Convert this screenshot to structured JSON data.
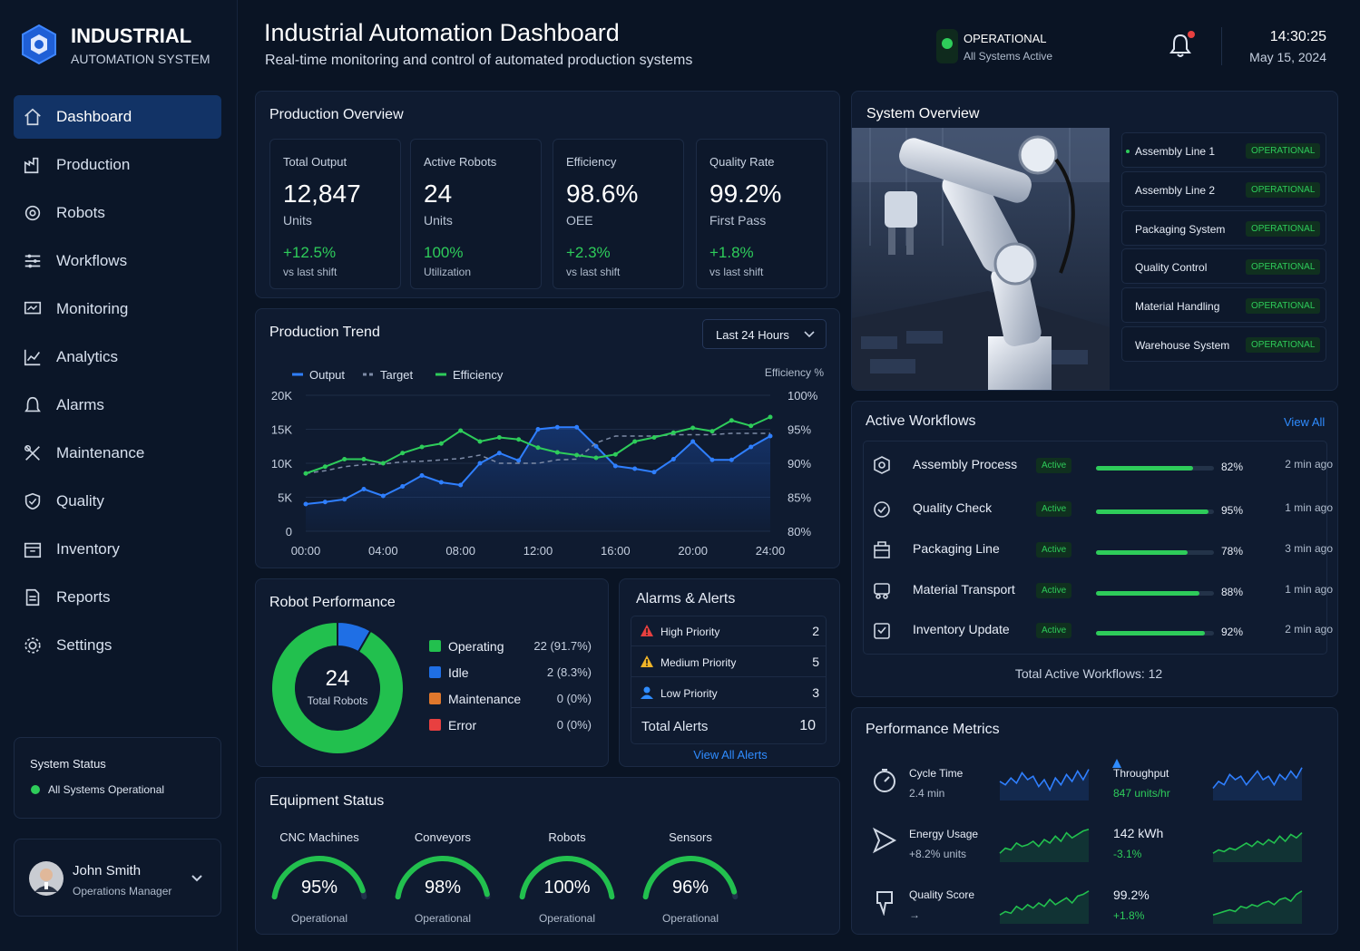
{
  "brand": {
    "title": "INDUSTRIAL",
    "subtitle": "AUTOMATION SYSTEM"
  },
  "nav": [
    {
      "label": "Dashboard",
      "icon": "home-icon",
      "active": true
    },
    {
      "label": "Production",
      "icon": "factory-icon"
    },
    {
      "label": "Robots",
      "icon": "robot-icon"
    },
    {
      "label": "Workflows",
      "icon": "workflow-icon"
    },
    {
      "label": "Monitoring",
      "icon": "monitor-icon"
    },
    {
      "label": "Analytics",
      "icon": "chart-icon"
    },
    {
      "label": "Alarms",
      "icon": "bell-icon"
    },
    {
      "label": "Maintenance",
      "icon": "wrench-icon"
    },
    {
      "label": "Quality",
      "icon": "shield-icon"
    },
    {
      "label": "Inventory",
      "icon": "box-icon"
    },
    {
      "label": "Reports",
      "icon": "document-icon"
    },
    {
      "label": "Settings",
      "icon": "gear-icon"
    }
  ],
  "system_status": {
    "title": "System Status",
    "text": "All Systems Operational"
  },
  "user": {
    "name": "John Smith",
    "role": "Operations Manager"
  },
  "header": {
    "title": "Industrial Automation Dashboard",
    "subtitle": "Real-time monitoring and control of automated production systems",
    "status": "OPERATIONAL",
    "status_sub": "All Systems Active",
    "time": "14:30:25",
    "date": "May 15, 2024"
  },
  "production_overview": {
    "title": "Production Overview",
    "kpis": [
      {
        "label": "Total Output",
        "value": "12,847",
        "unit": "Units",
        "change": "+12.5%",
        "sub": "vs last shift"
      },
      {
        "label": "Active Robots",
        "value": "24",
        "unit": "Units",
        "change": "100%",
        "sub": "Utilization"
      },
      {
        "label": "Efficiency",
        "value": "98.6%",
        "unit": "OEE",
        "change": "+2.3%",
        "sub": "vs last shift"
      },
      {
        "label": "Quality Rate",
        "value": "99.2%",
        "unit": "First Pass",
        "change": "+1.8%",
        "sub": "vs last shift"
      }
    ]
  },
  "trend": {
    "title": "Production Trend",
    "range": "Last 24 Hours"
  },
  "chart_data": {
    "type": "line",
    "title": "Production Trend",
    "x": [
      "00:00",
      "01:00",
      "02:00",
      "03:00",
      "04:00",
      "05:00",
      "06:00",
      "07:00",
      "08:00",
      "09:00",
      "10:00",
      "11:00",
      "12:00",
      "13:00",
      "14:00",
      "15:00",
      "16:00",
      "17:00",
      "18:00",
      "19:00",
      "20:00",
      "21:00",
      "22:00",
      "23:00",
      "24:00"
    ],
    "xticks": [
      "00:00",
      "04:00",
      "08:00",
      "12:00",
      "16:00",
      "20:00",
      "24:00"
    ],
    "yticks_left": [
      "0",
      "5K",
      "10K",
      "15K",
      "20K"
    ],
    "yticks_right": [
      "80%",
      "85%",
      "90%",
      "95%",
      "100%"
    ],
    "ylim": [
      0,
      20000
    ],
    "ylim_right": [
      80,
      100
    ],
    "ylabel_right": "Efficiency %",
    "legend": [
      "Output",
      "Target",
      "Efficiency"
    ],
    "series": [
      {
        "name": "Output",
        "color": "#2f7fff",
        "values": [
          4000,
          4300,
          4700,
          6200,
          5200,
          6600,
          8200,
          7200,
          6800,
          10000,
          11500,
          10400,
          15000,
          15300,
          15300,
          12500,
          9600,
          9200,
          8700,
          10600,
          13200,
          10500,
          10500,
          12400,
          14000
        ]
      },
      {
        "name": "Target",
        "color": "#7d8ba6",
        "dashed": true,
        "values": [
          8500,
          8900,
          9500,
          9800,
          9900,
          10200,
          10300,
          10500,
          10700,
          11200,
          10000,
          10000,
          10000,
          10500,
          10600,
          13000,
          14000,
          14000,
          14000,
          14200,
          14200,
          14200,
          14400,
          14400,
          14400
        ]
      },
      {
        "name": "Efficiency",
        "color": "#2ecc5a",
        "axis": "right",
        "values": [
          88.5,
          89.5,
          90.6,
          90.6,
          90,
          91.5,
          92.4,
          92.9,
          94.8,
          93.2,
          93.8,
          93.5,
          92.3,
          91.6,
          91.2,
          90.8,
          91.3,
          93.2,
          93.8,
          94.5,
          95.2,
          94.7,
          96.3,
          95.5,
          96.8
        ]
      }
    ]
  },
  "system_overview": {
    "title": "System Overview",
    "rows": [
      {
        "name": "Assembly Line 1",
        "status": "OPERATIONAL"
      },
      {
        "name": "Assembly Line 2",
        "status": "OPERATIONAL"
      },
      {
        "name": "Packaging System",
        "status": "OPERATIONAL"
      },
      {
        "name": "Quality Control",
        "status": "OPERATIONAL"
      },
      {
        "name": "Material Handling",
        "status": "OPERATIONAL"
      },
      {
        "name": "Warehouse System",
        "status": "OPERATIONAL"
      }
    ]
  },
  "workflows": {
    "title": "Active Workflows",
    "view_all": "View All",
    "total": "Total Active Workflows: 12",
    "rows": [
      {
        "name": "Assembly Process",
        "status": "Active",
        "pct": "82%",
        "progress": 0.82,
        "time": "2 min ago"
      },
      {
        "name": "Quality Check",
        "status": "Active",
        "pct": "95%",
        "progress": 0.95,
        "time": "1 min ago"
      },
      {
        "name": "Packaging Line",
        "status": "Active",
        "pct": "78%",
        "progress": 0.78,
        "time": "3 min ago"
      },
      {
        "name": "Material Transport",
        "status": "Active",
        "pct": "88%",
        "progress": 0.88,
        "time": "1 min ago"
      },
      {
        "name": "Inventory Update",
        "status": "Active",
        "pct": "92%",
        "progress": 0.92,
        "time": "2 min ago"
      }
    ]
  },
  "robot_performance": {
    "title": "Robot Performance",
    "center_value": "24",
    "center_label": "Total Robots",
    "items": [
      {
        "label": "Operating",
        "value": "22 (91.7%)",
        "count": 22,
        "color": "#22c04e"
      },
      {
        "label": "Idle",
        "value": "2 (8.3%)",
        "count": 2,
        "color": "#1f6fe5"
      },
      {
        "label": "Maintenance",
        "value": "0 (0%)",
        "count": 0,
        "color": "#e0782c"
      },
      {
        "label": "Error",
        "value": "0 (0%)",
        "count": 0,
        "color": "#e84040"
      }
    ]
  },
  "alarms": {
    "title": "Alarms & Alerts",
    "rows": [
      {
        "label": "High Priority",
        "count": "2",
        "color": "#e84040"
      },
      {
        "label": "Medium Priority",
        "count": "5",
        "color": "#f0b428"
      },
      {
        "label": "Low Priority",
        "count": "3",
        "color": "#2f8cff"
      }
    ],
    "total_label": "Total Alerts",
    "total": "10",
    "view_all": "View All Alerts"
  },
  "equipment": {
    "title": "Equipment Status",
    "gauges": [
      {
        "label": "CNC Machines",
        "value": "95%",
        "status": "Operational",
        "level": 0.95
      },
      {
        "label": "Conveyors",
        "value": "98%",
        "status": "Operational",
        "level": 0.98
      },
      {
        "label": "Robots",
        "value": "100%",
        "status": "Operational",
        "level": 1.0
      },
      {
        "label": "Sensors",
        "value": "96%",
        "status": "Operational",
        "level": 0.96
      }
    ]
  },
  "performance": {
    "title": "Performance Metrics",
    "metrics": [
      {
        "label": "Cycle Time",
        "value": "2.4 min",
        "icon": "stopwatch-icon"
      },
      {
        "label": "Throughput",
        "value": "847 units/hr",
        "icon": "arrow-up-icon"
      },
      {
        "label": "Energy Usage",
        "value": "+8.2% units",
        "icon": "send-icon"
      },
      {
        "label": "",
        "value": "142 kWh",
        "sub": "-3.1%"
      },
      {
        "label": "Quality Score",
        "value": "→",
        "icon": "thumb-icon"
      },
      {
        "label": "",
        "value": "99.2%",
        "sub": "+1.8%"
      }
    ]
  }
}
